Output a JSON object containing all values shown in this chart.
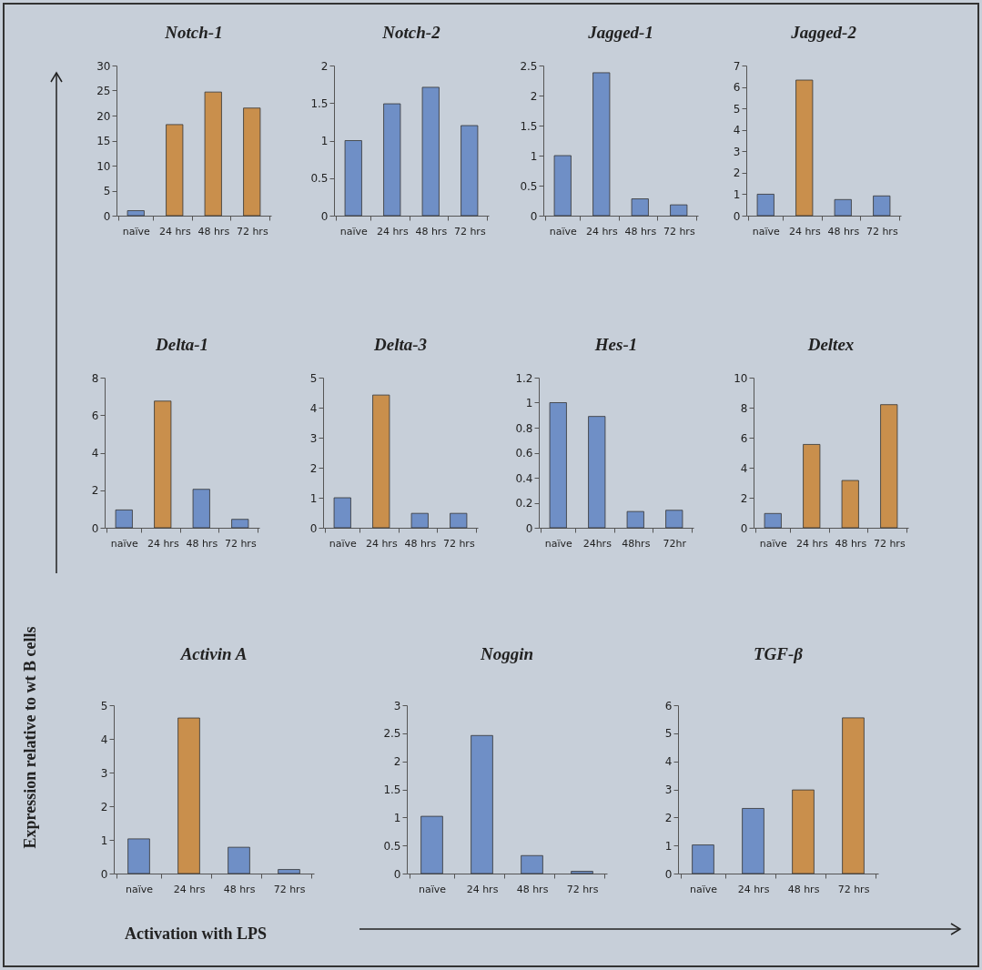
{
  "chart_data": [
    {
      "type": "bar",
      "title": "Notch-1",
      "categories": [
        "naïve",
        "24 hrs",
        "48 hrs",
        "72 hrs"
      ],
      "values": [
        1,
        18.2,
        24.7,
        21.5
      ],
      "colors": [
        "#6f8fc6",
        "#c98f4c",
        "#c98f4c",
        "#c98f4c"
      ],
      "ylim": [
        0,
        30
      ],
      "yticks": [
        0,
        5,
        10,
        15,
        20,
        25,
        30
      ]
    },
    {
      "type": "bar",
      "title": "Notch-2",
      "categories": [
        "naïve",
        "24 hrs",
        "48 hrs",
        "72 hrs"
      ],
      "values": [
        1,
        1.49,
        1.71,
        1.2
      ],
      "colors": [
        "#6f8fc6",
        "#6f8fc6",
        "#6f8fc6",
        "#6f8fc6"
      ],
      "ylim": [
        0,
        2
      ],
      "yticks": [
        0,
        0.5,
        1,
        1.5,
        2
      ]
    },
    {
      "type": "bar",
      "title": "Jagged-1",
      "categories": [
        "naïve",
        "24 hrs",
        "48 hrs",
        "72 hrs"
      ],
      "values": [
        1,
        2.38,
        0.28,
        0.18
      ],
      "colors": [
        "#6f8fc6",
        "#6f8fc6",
        "#6f8fc6",
        "#6f8fc6"
      ],
      "ylim": [
        0,
        2.5
      ],
      "yticks": [
        0,
        0.5,
        1,
        1.5,
        2,
        2.5
      ]
    },
    {
      "type": "bar",
      "title": "Jagged-2",
      "categories": [
        "naïve",
        "24 hrs",
        "48 hrs",
        "72 hrs"
      ],
      "values": [
        1,
        6.32,
        0.75,
        0.92
      ],
      "colors": [
        "#6f8fc6",
        "#c98f4c",
        "#6f8fc6",
        "#6f8fc6"
      ],
      "ylim": [
        0,
        7
      ],
      "yticks": [
        0,
        1,
        2,
        3,
        4,
        5,
        6,
        7
      ]
    },
    {
      "type": "bar",
      "title": "Delta-1",
      "categories": [
        "naïve",
        "24 hrs",
        "48 hrs",
        "72 hrs"
      ],
      "values": [
        0.95,
        6.75,
        2.05,
        0.45
      ],
      "colors": [
        "#6f8fc6",
        "#c98f4c",
        "#6f8fc6",
        "#6f8fc6"
      ],
      "ylim": [
        0,
        8
      ],
      "yticks": [
        0,
        2,
        4,
        6,
        8
      ]
    },
    {
      "type": "bar",
      "title": "Delta-3",
      "categories": [
        "naïve",
        "24 hrs",
        "48 hrs",
        "72 hrs"
      ],
      "values": [
        1,
        4.42,
        0.48,
        0.48
      ],
      "colors": [
        "#6f8fc6",
        "#c98f4c",
        "#6f8fc6",
        "#6f8fc6"
      ],
      "ylim": [
        0,
        5
      ],
      "yticks": [
        0,
        1,
        2,
        3,
        4,
        5
      ]
    },
    {
      "type": "bar",
      "title": "Hes-1",
      "categories": [
        "naïve",
        "24hrs",
        "48hrs",
        "72hr"
      ],
      "values": [
        1,
        0.89,
        0.13,
        0.14
      ],
      "colors": [
        "#6f8fc6",
        "#6f8fc6",
        "#6f8fc6",
        "#6f8fc6"
      ],
      "ylim": [
        0,
        1.2
      ],
      "yticks": [
        0,
        0.2,
        0.4,
        0.6,
        0.8,
        1,
        1.2
      ]
    },
    {
      "type": "bar",
      "title": "Deltex",
      "categories": [
        "naïve",
        "24 hrs",
        "48 hrs",
        "72 hrs"
      ],
      "values": [
        0.95,
        5.55,
        3.15,
        8.2
      ],
      "colors": [
        "#6f8fc6",
        "#c98f4c",
        "#c98f4c",
        "#c98f4c"
      ],
      "ylim": [
        0,
        10
      ],
      "yticks": [
        0,
        2,
        4,
        6,
        8,
        10
      ]
    },
    {
      "type": "bar",
      "title": "Activin A",
      "ylabel": "Expression relative to wt B cells",
      "xlabel": "Activation with LPS",
      "categories": [
        "naïve",
        "24 hrs",
        "48 hrs",
        "72 hrs"
      ],
      "values": [
        1.03,
        4.62,
        0.78,
        0.12
      ],
      "colors": [
        "#6f8fc6",
        "#c98f4c",
        "#6f8fc6",
        "#6f8fc6"
      ],
      "ylim": [
        0,
        5
      ],
      "yticks": [
        0,
        1,
        2,
        3,
        4,
        5
      ]
    },
    {
      "type": "bar",
      "title": "Noggin",
      "categories": [
        "naïve",
        "24 hrs",
        "48 hrs",
        "72 hrs"
      ],
      "values": [
        1.02,
        2.46,
        0.32,
        0.04
      ],
      "colors": [
        "#6f8fc6",
        "#6f8fc6",
        "#6f8fc6",
        "#6f8fc6"
      ],
      "ylim": [
        0,
        3
      ],
      "yticks": [
        0,
        0.5,
        1,
        1.5,
        2,
        2.5,
        3
      ]
    },
    {
      "type": "bar",
      "title": "TGF-β",
      "categories": [
        "naïve",
        "24 hrs",
        "48 hrs",
        "72 hrs"
      ],
      "values": [
        1.02,
        2.32,
        2.98,
        5.55
      ],
      "colors": [
        "#6f8fc6",
        "#6f8fc6",
        "#c98f4c",
        "#c98f4c"
      ],
      "ylim": [
        0,
        6
      ],
      "yticks": [
        0,
        1,
        2,
        3,
        4,
        5,
        6
      ]
    }
  ]
}
